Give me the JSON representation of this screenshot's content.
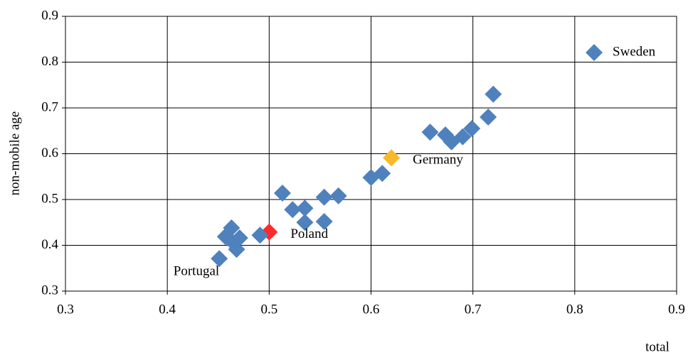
{
  "chart_data": {
    "type": "scatter",
    "xlabel": "total",
    "ylabel": "non-mobile age",
    "xlim": [
      0.3,
      0.9
    ],
    "ylim": [
      0.3,
      0.9
    ],
    "xticks": [
      0.3,
      0.4,
      0.5,
      0.6,
      0.7,
      0.8,
      0.9
    ],
    "yticks": [
      0.3,
      0.4,
      0.5,
      0.6,
      0.7,
      0.8,
      0.9
    ],
    "grid": true,
    "x": [
      0.819,
      0.72,
      0.715,
      0.699,
      0.69,
      0.679,
      0.673,
      0.658,
      0.62,
      0.611,
      0.6,
      0.568,
      0.554,
      0.554,
      0.535,
      0.535,
      0.523,
      0.513,
      0.5,
      0.491,
      0.463,
      0.471,
      0.457,
      0.468,
      0.465,
      0.451
    ],
    "y": [
      0.821,
      0.73,
      0.68,
      0.655,
      0.637,
      0.626,
      0.641,
      0.647,
      0.591,
      0.557,
      0.548,
      0.508,
      0.505,
      0.452,
      0.481,
      0.45,
      0.478,
      0.514,
      0.429,
      0.422,
      0.438,
      0.416,
      0.419,
      0.391,
      0.405,
      0.371
    ],
    "point_colors": [
      "#4f81bd",
      "#4f81bd",
      "#4f81bd",
      "#4f81bd",
      "#4f81bd",
      "#4f81bd",
      "#4f81bd",
      "#4f81bd",
      "#f8b92a",
      "#4f81bd",
      "#4f81bd",
      "#4f81bd",
      "#4f81bd",
      "#4f81bd",
      "#4f81bd",
      "#4f81bd",
      "#4f81bd",
      "#4f81bd",
      "#ff2a2a",
      "#4f81bd",
      "#4f81bd",
      "#4f81bd",
      "#4f81bd",
      "#4f81bd",
      "#4f81bd",
      "#4f81bd"
    ],
    "point_labels": [
      "Sweden",
      null,
      null,
      null,
      null,
      null,
      null,
      null,
      "Germany",
      null,
      null,
      null,
      null,
      null,
      null,
      null,
      null,
      null,
      "Poland",
      null,
      null,
      null,
      null,
      null,
      null,
      "Portugal"
    ]
  }
}
